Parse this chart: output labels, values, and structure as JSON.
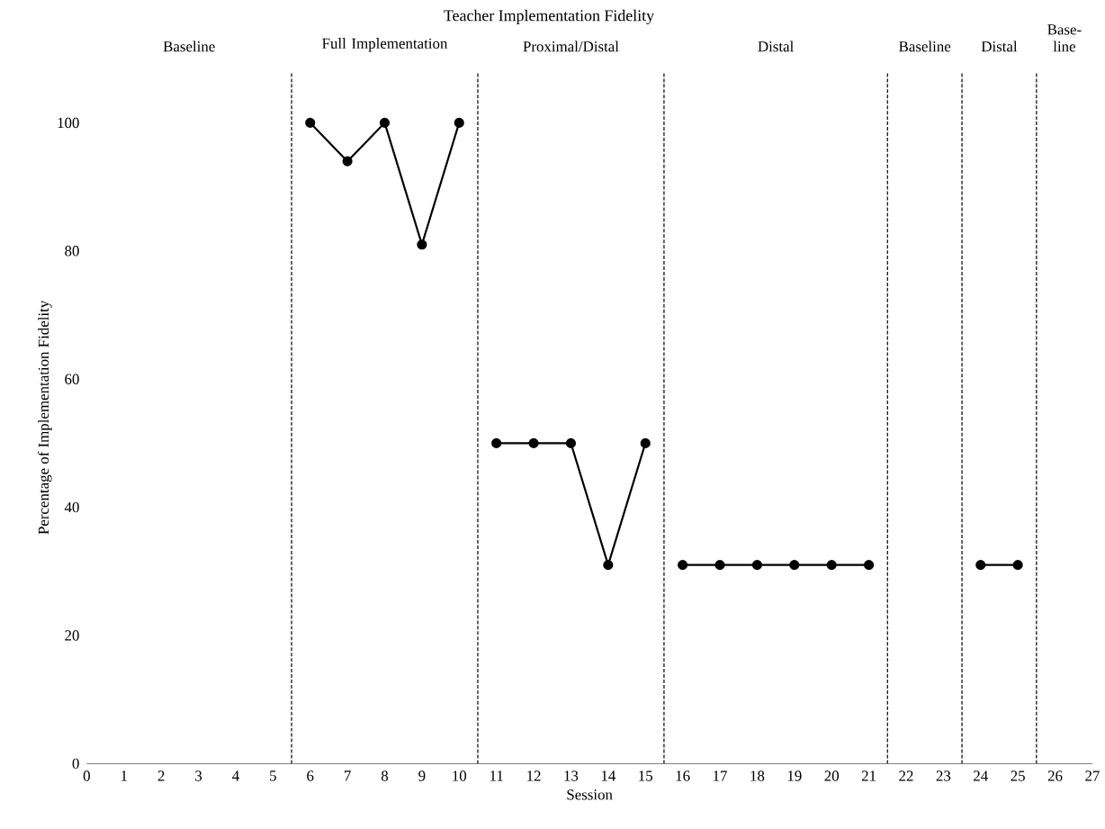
{
  "chart_data": {
    "type": "line",
    "title": "Teacher Implementation Fidelity",
    "xlabel": "Session",
    "ylabel": "Percentage of Implementation Fidelity",
    "xlim": [
      0,
      27
    ],
    "xticks": [
      0,
      1,
      2,
      3,
      4,
      5,
      6,
      7,
      8,
      9,
      10,
      11,
      12,
      13,
      14,
      15,
      16,
      17,
      18,
      19,
      20,
      21,
      22,
      23,
      24,
      25,
      26,
      27
    ],
    "ylim": [
      0,
      108
    ],
    "yticks": [
      0,
      20,
      40,
      60,
      80,
      100
    ],
    "series": [
      {
        "color": "#000000",
        "x": [
          6,
          7,
          8,
          9,
          10
        ],
        "values": [
          100,
          94,
          100,
          81,
          100
        ]
      },
      {
        "color": "#000000",
        "x": [
          11,
          12,
          13,
          14,
          15
        ],
        "values": [
          50,
          50,
          50,
          31,
          50
        ]
      },
      {
        "color": "#000000",
        "x": [
          16,
          17,
          18,
          19,
          20,
          21
        ],
        "values": [
          31,
          31,
          31,
          31,
          31,
          31
        ]
      },
      {
        "color": "#000000",
        "x": [
          24,
          25
        ],
        "values": [
          31,
          31
        ]
      }
    ],
    "ref_lines": [
      {
        "axis": "x",
        "value": 5.5,
        "line_style": "dashed",
        "color": "#000000"
      },
      {
        "axis": "x",
        "value": 10.5,
        "line_style": "dashed",
        "color": "#000000"
      },
      {
        "axis": "x",
        "value": 15.5,
        "line_style": "dashed",
        "color": "#000000"
      },
      {
        "axis": "x",
        "value": 21.5,
        "line_style": "dashed",
        "color": "#000000"
      },
      {
        "axis": "x",
        "value": 23.5,
        "line_style": "dashed",
        "color": "#000000"
      },
      {
        "axis": "x",
        "value": 25.5,
        "line_style": "dashed",
        "color": "#000000"
      }
    ],
    "annotations": [
      "Baseline",
      "Full Implementation",
      "Proximal/Distal",
      "Distal",
      "Baseline",
      "Distal",
      "Base-line"
    ],
    "marker": "circle",
    "line_style": "solid"
  }
}
